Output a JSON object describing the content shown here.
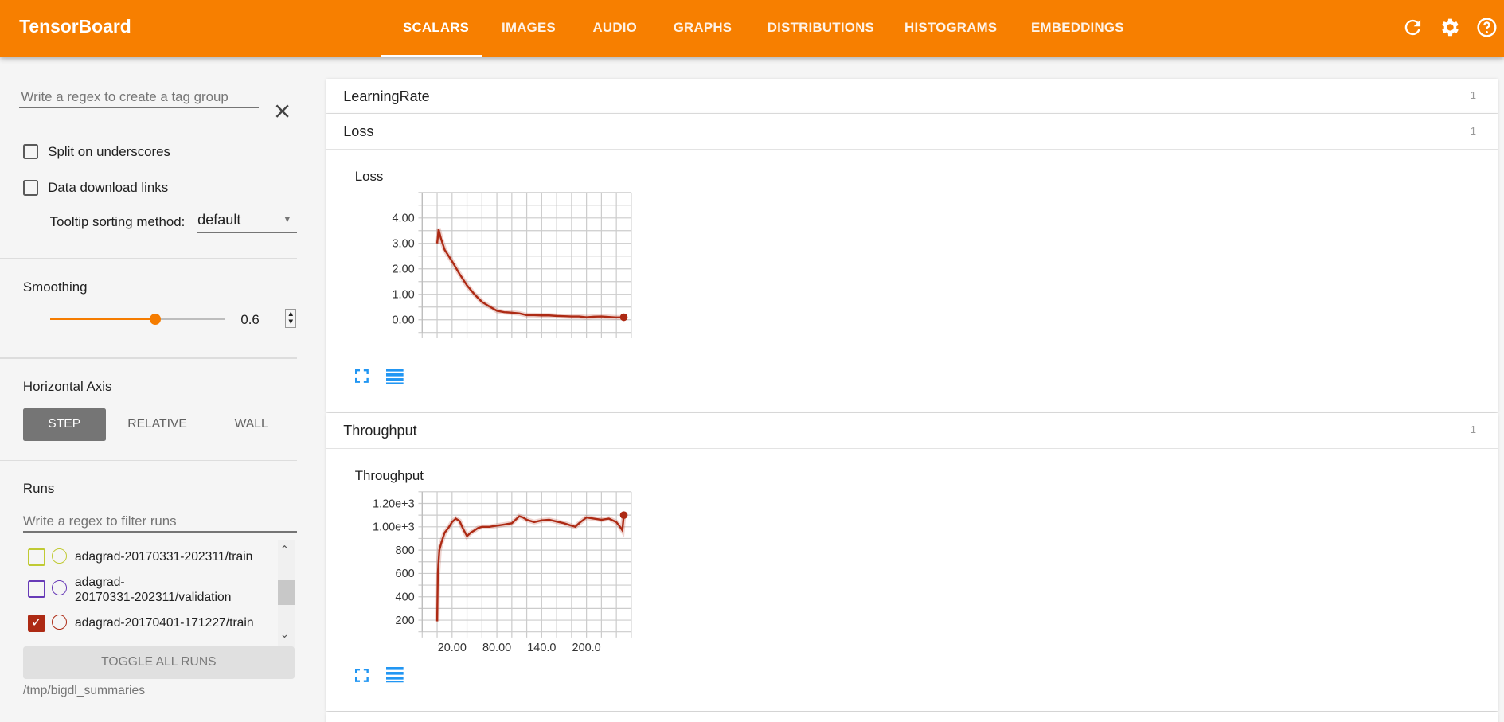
{
  "header": {
    "title": "TensorBoard",
    "tabs": [
      "SCALARS",
      "IMAGES",
      "AUDIO",
      "GRAPHS",
      "DISTRIBUTIONS",
      "HISTOGRAMS",
      "EMBEDDINGS"
    ],
    "active_tab": "SCALARS",
    "icons": [
      "refresh-icon",
      "settings-icon",
      "help-icon"
    ],
    "color": "#f77f00"
  },
  "sidebar": {
    "tag_group_placeholder": "Write a regex to create a tag group",
    "split_on_underscores": {
      "label": "Split on underscores",
      "checked": false
    },
    "data_download_links": {
      "label": "Data download links",
      "checked": false
    },
    "tooltip_sorting": {
      "label": "Tooltip sorting method:",
      "value": "default"
    },
    "smoothing": {
      "label": "Smoothing",
      "value": "0.6",
      "fraction": 0.6
    },
    "horizontal_axis": {
      "label": "Horizontal Axis",
      "options": [
        "STEP",
        "RELATIVE",
        "WALL"
      ],
      "selected": "STEP"
    },
    "runs": {
      "label": "Runs",
      "filter_placeholder": "Write a regex to filter runs",
      "items": [
        {
          "name": "adagrad-20170331-202311/train",
          "color": "#c0ca33",
          "checked": false
        },
        {
          "name_line1": "adagrad-",
          "name_line2": "20170331-202311/validation",
          "color": "#673ab7",
          "checked": false
        },
        {
          "name": "adagrad-20170401-171227/train",
          "color": "#ad2a14",
          "checked": true
        }
      ],
      "toggle_all": "TOGGLE ALL RUNS",
      "logdir": "/tmp/bigdl_summaries"
    }
  },
  "main": {
    "cards": [
      {
        "title": "LearningRate",
        "count": "1"
      },
      {
        "title": "Loss",
        "count": "1",
        "chart_title": "Loss"
      },
      {
        "title": "Throughput",
        "count": "1",
        "chart_title": "Throughput"
      }
    ]
  },
  "chart_data": [
    {
      "type": "line",
      "title": "Loss",
      "xlim": [
        -20,
        260
      ],
      "ylim": [
        -0.5,
        5
      ],
      "yticks": [
        "0.00",
        "1.00",
        "2.00",
        "3.00",
        "4.00"
      ],
      "ytick_values": [
        0,
        1,
        2,
        3,
        4
      ],
      "xticks": [],
      "grid": true,
      "color": "#ad2a14",
      "series": [
        {
          "x": [
            0,
            2,
            5,
            10,
            20,
            30,
            40,
            50,
            60,
            70,
            80,
            90,
            100,
            110,
            120,
            130,
            140,
            150,
            160,
            170,
            180,
            190,
            200,
            210,
            220,
            230,
            240,
            250
          ],
          "y": [
            3.0,
            3.55,
            3.2,
            2.75,
            2.3,
            1.8,
            1.35,
            1.0,
            0.7,
            0.52,
            0.35,
            0.3,
            0.28,
            0.25,
            0.18,
            0.18,
            0.17,
            0.17,
            0.15,
            0.14,
            0.13,
            0.13,
            0.1,
            0.12,
            0.13,
            0.11,
            0.09,
            0.1
          ]
        }
      ]
    },
    {
      "type": "line",
      "title": "Throughput",
      "xlim": [
        -20,
        260
      ],
      "ylim": [
        100,
        1300
      ],
      "yticks": [
        "200",
        "400",
        "600",
        "800",
        "1.00e+3",
        "1.20e+3"
      ],
      "ytick_values": [
        200,
        400,
        600,
        800,
        1000,
        1200
      ],
      "xticks": [
        "20.00",
        "80.00",
        "140.0",
        "200.0"
      ],
      "xtick_values": [
        20,
        80,
        140,
        200
      ],
      "grid": true,
      "color": "#ad2a14",
      "series": [
        {
          "x": [
            0,
            1,
            3,
            6,
            10,
            15,
            20,
            25,
            30,
            35,
            40,
            45,
            50,
            55,
            60,
            70,
            80,
            90,
            100,
            110,
            115,
            120,
            130,
            140,
            150,
            160,
            170,
            180,
            185,
            190,
            200,
            210,
            220,
            230,
            240,
            245,
            248,
            250
          ],
          "y": [
            190,
            600,
            800,
            870,
            950,
            990,
            1040,
            1070,
            1050,
            980,
            920,
            950,
            970,
            990,
            1000,
            1000,
            1010,
            1020,
            1030,
            1090,
            1080,
            1060,
            1040,
            1055,
            1060,
            1045,
            1030,
            1010,
            1000,
            1030,
            1080,
            1070,
            1060,
            1070,
            1040,
            1000,
            970,
            1100
          ]
        }
      ]
    }
  ]
}
